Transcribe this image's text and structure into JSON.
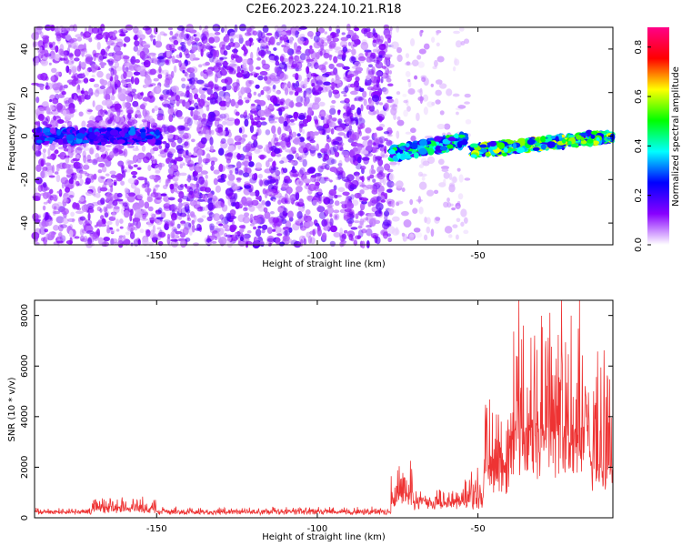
{
  "title": "C2E6.2023.224.10.21.R18",
  "chart_data": [
    {
      "type": "heatmap",
      "xlabel": "Height of straight line (km)",
      "ylabel": "Frequency (Hz)",
      "xlim": [
        -188,
        -8
      ],
      "ylim": [
        -50,
        50
      ],
      "x_ticks": [
        "-150",
        "-100",
        "-50"
      ],
      "y_ticks": [
        "-40",
        "-20",
        "0",
        "20",
        "40"
      ],
      "colorbar": {
        "label": "Normalized spectral amplitude",
        "range": [
          0,
          0.88
        ],
        "ticks": [
          "0.0",
          "0.2",
          "0.4",
          "0.6",
          "0.8"
        ],
        "colors": [
          "#ffffff",
          "#8800ff",
          "#0000ff",
          "#00ffff",
          "#00ff00",
          "#ffff00",
          "#ff0000",
          "#ff0088"
        ]
      },
      "regions": [
        {
          "x": [
            -188,
            -149
          ],
          "coverage": "dense",
          "level": 0.1
        },
        {
          "x": [
            -149,
            -77
          ],
          "coverage": "dense",
          "level": 0.12
        },
        {
          "x": [
            -77,
            -53
          ],
          "coverage": "sparse",
          "level": 0.05
        },
        {
          "x": [
            -53,
            -8
          ],
          "coverage": "empty",
          "level": 0.0
        }
      ],
      "bands": [
        {
          "x": [
            -188,
            -149
          ],
          "y_center": [
            0,
            0
          ],
          "width": 6,
          "level": 0.25
        },
        {
          "x": [
            -77,
            -54
          ],
          "y_center": [
            -8,
            -2
          ],
          "width": 6,
          "level": 0.4
        },
        {
          "x": [
            -52,
            -8
          ],
          "y_center": [
            -7,
            0
          ],
          "width": 5,
          "level": 0.5
        }
      ]
    },
    {
      "type": "line",
      "xlabel": "Height of straight line (km)",
      "ylabel": "SNR (10 * v/v)",
      "xlim": [
        -188,
        -8
      ],
      "ylim": [
        0,
        8600
      ],
      "x_ticks": [
        "-150",
        "-100",
        "-50"
      ],
      "y_ticks": [
        "0",
        "2000",
        "4000",
        "6000",
        "8000"
      ],
      "color": "#ee3333",
      "segments": [
        {
          "x": [
            -188,
            -170
          ],
          "base": 200,
          "amp": 150
        },
        {
          "x": [
            -170,
            -150
          ],
          "base": 300,
          "amp": 450
        },
        {
          "x": [
            -150,
            -77
          ],
          "base": 200,
          "amp": 180
        },
        {
          "x": [
            -77,
            -70
          ],
          "base": 700,
          "amp": 1700
        },
        {
          "x": [
            -70,
            -55
          ],
          "base": 500,
          "amp": 500
        },
        {
          "x": [
            -55,
            -48
          ],
          "base": 500,
          "amp": 1500
        },
        {
          "x": [
            -48,
            -40
          ],
          "base": 1500,
          "amp": 3500
        },
        {
          "x": [
            -40,
            -15
          ],
          "base": 2500,
          "amp": 6000
        },
        {
          "x": [
            -15,
            -8
          ],
          "base": 1500,
          "amp": 5000
        }
      ]
    }
  ]
}
